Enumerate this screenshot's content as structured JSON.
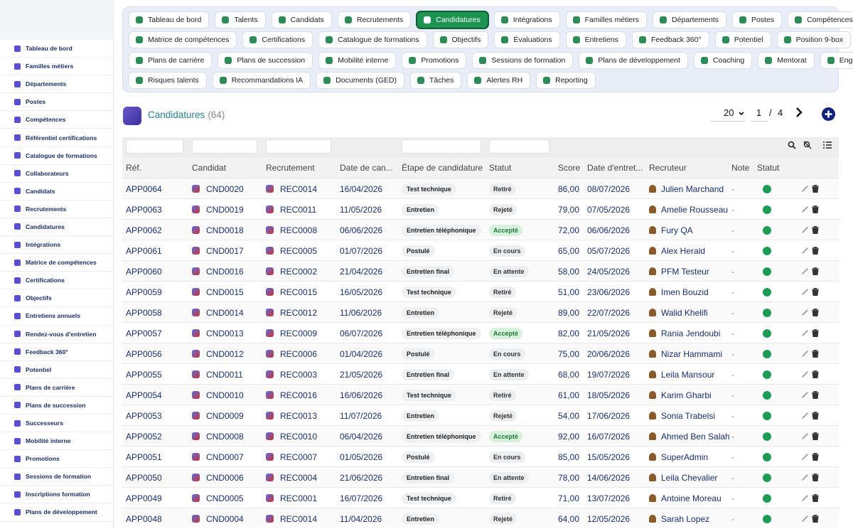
{
  "sidebar": {
    "items": [
      "Tableau de bord",
      "Familles métiers",
      "Départements",
      "Postes",
      "Compétences",
      "Référentiel certifications",
      "Catalogue de formations",
      "Collaborateurs",
      "Candidats",
      "Recrutements",
      "Candidatures",
      "Intégrations",
      "Matrice de compétences",
      "Certifications",
      "Objectifs",
      "Entretiens annuels",
      "Rendez-vous d'entretien",
      "Feedback 360°",
      "Potentiel",
      "Plans de carrière",
      "Plans de succession",
      "Successeurs",
      "Mobilité interne",
      "Promotions",
      "Sessions de formation",
      "Inscriptions formation",
      "Plans de développement"
    ]
  },
  "tabs": {
    "active": "Candidatures",
    "rows": [
      [
        "Tableau de bord",
        "Talents",
        "Candidats",
        "Recrutements",
        "Candidatures",
        "Intégrations",
        "Familles métiers",
        "Départements",
        "Postes",
        "Compétences"
      ],
      [
        "Matrice de compétences",
        "Certifications",
        "Catalogue de formations",
        "Objectifs",
        "Évaluations",
        "Entretiens",
        "Feedback 360°",
        "Potentiel",
        "Position 9-box"
      ],
      [
        "Plans de carrière",
        "Plans de succession",
        "Mobilité interne",
        "Promotions",
        "Sessions de formation",
        "Plans de développement",
        "Coaching",
        "Mentorat",
        "Engagement"
      ],
      [
        "Risques talents",
        "Recommandations IA",
        "Documents (GED)",
        "Tâches",
        "Alertes RH",
        "Reporting"
      ]
    ]
  },
  "header": {
    "title": "Candidatures",
    "count": "(64)",
    "page_size": "20",
    "page": "1",
    "separator": "/",
    "pages": "4"
  },
  "table": {
    "columns": [
      "Réf.",
      "Candidat",
      "Recrutement",
      "Date de can...",
      "Étape de candidature",
      "Statut",
      "Score",
      "Date d'entret...",
      "Recruteur",
      "Note",
      "Statut"
    ],
    "rows": [
      [
        "APP0064",
        "CND0020",
        "REC0014",
        "16/04/2026",
        "Test technique",
        "Retiré",
        "86,00",
        "08/07/2026",
        "Julien Marchand",
        "-"
      ],
      [
        "APP0063",
        "CND0019",
        "REC0011",
        "11/05/2026",
        "Entretien",
        "Rejeté",
        "79,00",
        "07/05/2026",
        "Amelie Rousseau",
        "-"
      ],
      [
        "APP0062",
        "CND0018",
        "REC0008",
        "06/06/2026",
        "Entretien téléphonique",
        "Accepté",
        "72,00",
        "06/06/2026",
        "Fury QA",
        "-"
      ],
      [
        "APP0061",
        "CND0017",
        "REC0005",
        "01/07/2026",
        "Postulé",
        "En cours",
        "65,00",
        "05/07/2026",
        "Alex Herald",
        "-"
      ],
      [
        "APP0060",
        "CND0016",
        "REC0002",
        "21/04/2026",
        "Entretien final",
        "En attente",
        "58,00",
        "24/05/2026",
        "PFM Testeur",
        "-"
      ],
      [
        "APP0059",
        "CND0015",
        "REC0015",
        "16/05/2026",
        "Test technique",
        "Retiré",
        "51,00",
        "23/06/2026",
        "Imen Bouzid",
        "-"
      ],
      [
        "APP0058",
        "CND0014",
        "REC0012",
        "11/06/2026",
        "Entretien",
        "Rejeté",
        "89,00",
        "22/07/2026",
        "Walid Khelifi",
        "-"
      ],
      [
        "APP0057",
        "CND0013",
        "REC0009",
        "06/07/2026",
        "Entretien téléphonique",
        "Accepté",
        "82,00",
        "21/05/2026",
        "Rania Jendoubi",
        "-"
      ],
      [
        "APP0056",
        "CND0012",
        "REC0006",
        "01/04/2026",
        "Postulé",
        "En cours",
        "75,00",
        "20/06/2026",
        "Nizar Hammami",
        "-"
      ],
      [
        "APP0055",
        "CND0011",
        "REC0003",
        "21/05/2026",
        "Entretien final",
        "En attente",
        "68,00",
        "19/07/2026",
        "Leila Mansour",
        "-"
      ],
      [
        "APP0054",
        "CND0010",
        "REC0016",
        "16/06/2026",
        "Test technique",
        "Retiré",
        "61,00",
        "18/05/2026",
        "Karim Gharbi",
        "-"
      ],
      [
        "APP0053",
        "CND0009",
        "REC0013",
        "11/07/2026",
        "Entretien",
        "Rejeté",
        "54,00",
        "17/06/2026",
        "Sonia Trabelsi",
        "-"
      ],
      [
        "APP0052",
        "CND0008",
        "REC0010",
        "06/04/2026",
        "Entretien téléphonique",
        "Accepté",
        "92,00",
        "16/07/2026",
        "Ahmed Ben Salah",
        "-"
      ],
      [
        "APP0051",
        "CND0007",
        "REC0007",
        "01/05/2026",
        "Postulé",
        "En cours",
        "85,00",
        "15/05/2026",
        "SuperAdmin",
        "-"
      ],
      [
        "APP0050",
        "CND0006",
        "REC0004",
        "21/06/2026",
        "Entretien final",
        "En attente",
        "78,00",
        "14/06/2026",
        "Leila Chevalier",
        "-"
      ],
      [
        "APP0049",
        "CND0005",
        "REC0001",
        "16/07/2026",
        "Test technique",
        "Retiré",
        "71,00",
        "13/07/2026",
        "Antoine Moreau",
        "-"
      ],
      [
        "APP0048",
        "CND0004",
        "REC0014",
        "11/04/2026",
        "Entretien",
        "Rejeté",
        "64,00",
        "12/05/2026",
        "Sarah Lopez",
        "-"
      ]
    ]
  }
}
